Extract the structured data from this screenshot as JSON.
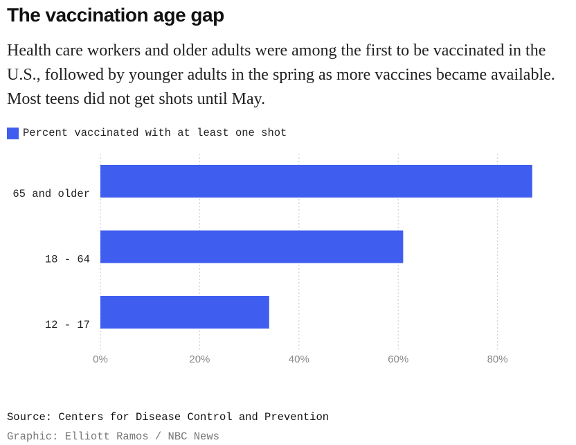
{
  "title": "The vaccination age gap",
  "subtitle": "Health care workers and older adults were among the first to be vaccinated in the U.S., followed by younger adults in the spring as more vaccines became available. Most teens did not get shots until May.",
  "legend": {
    "label": "Percent vaccinated with at least one shot",
    "color": "#3f5ef0"
  },
  "source": "Source: Centers for Disease Control and Prevention",
  "credit": "Graphic: Elliott Ramos / NBC News",
  "chart_data": {
    "type": "bar",
    "orientation": "horizontal",
    "categories": [
      "65 and older",
      "18 - 64",
      "12 - 17"
    ],
    "series": [
      {
        "name": "Percent vaccinated with at least one shot",
        "values": [
          87,
          61,
          34
        ],
        "color": "#3f5ef0"
      }
    ],
    "xlim": [
      0,
      87
    ],
    "xticks": [
      0,
      20,
      40,
      60,
      80
    ],
    "xtick_labels": [
      "0%",
      "20%",
      "40%",
      "60%",
      "80%"
    ],
    "grid": true,
    "legend_position": "top-left"
  }
}
